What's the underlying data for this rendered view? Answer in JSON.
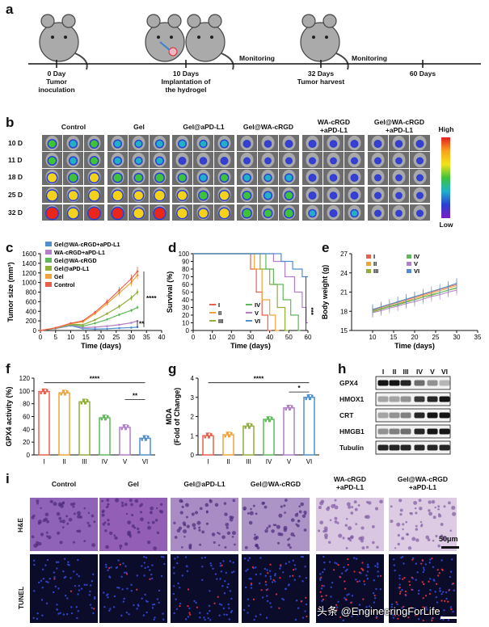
{
  "panels": {
    "a": "a",
    "b": "b",
    "c": "c",
    "d": "d",
    "e": "e",
    "f": "f",
    "g": "g",
    "h": "h",
    "i": "i"
  },
  "timeline": {
    "events": [
      {
        "day": "0 Day",
        "desc": [
          "Tumor",
          "inoculation"
        ]
      },
      {
        "day": "10 Days",
        "desc": [
          "Implantation of",
          "the hydrogel"
        ]
      },
      {
        "day": "32 Days",
        "desc": [
          "Tumor harvest"
        ]
      },
      {
        "day": "60 Days",
        "desc": []
      }
    ],
    "monitoring": [
      "Monitoring",
      "Monitoring"
    ]
  },
  "imaging": {
    "groups": [
      "Control",
      "Gel",
      "Gel@aPD-L1",
      "Gel@WA-cRGD",
      "WA-cRGD\n+aPD-L1",
      "Gel@WA-cRGD\n+aPD-L1"
    ],
    "days": [
      "10 D",
      "11 D",
      "18 D",
      "25 D",
      "32 D"
    ],
    "scale_high": "High",
    "scale_low": "Low"
  },
  "histology": {
    "groups": [
      "Control",
      "Gel",
      "Gel@aPD-L1",
      "Gel@WA-cRGD",
      "WA-cRGD\n+aPD-L1",
      "Gel@WA-cRGD\n+aPD-L1"
    ],
    "rows": [
      "H&E",
      "TUNEL"
    ],
    "scalebar": "50μm"
  },
  "western": {
    "lanes": [
      "I",
      "II",
      "III",
      "IV",
      "V",
      "VI"
    ],
    "proteins": [
      "GPX4",
      "HMOX1",
      "CRT",
      "HMGB1",
      "Tubulin"
    ]
  },
  "watermark": "头条 @EngineeringForLife",
  "colors": {
    "I": "#e8604c",
    "II": "#f0a33a",
    "III": "#8fae3a",
    "IV": "#5fb85a",
    "V": "#b27fc8",
    "VI": "#4f8fcf"
  },
  "chart_data": [
    {
      "id": "c",
      "type": "line",
      "xlabel": "Time (days)",
      "ylabel": "Tumor size (mm³)",
      "xlim": [
        0,
        40
      ],
      "ylim": [
        0,
        1600
      ],
      "xticks": [
        0,
        5,
        10,
        15,
        20,
        25,
        30,
        35,
        40
      ],
      "yticks": [
        0,
        200,
        400,
        600,
        800,
        1000,
        1200,
        1400,
        1600
      ],
      "x": [
        0,
        5,
        10,
        14,
        18,
        22,
        26,
        30,
        32
      ],
      "series": [
        {
          "name": "Gel@WA-cRGD+aPD-L1",
          "values": [
            0,
            40,
            100,
            40,
            30,
            35,
            50,
            60,
            70
          ]
        },
        {
          "name": "WA-cRGD+aPD-L1",
          "values": [
            0,
            45,
            110,
            60,
            70,
            90,
            120,
            160,
            200
          ]
        },
        {
          "name": "Gel@WA-cRGD",
          "values": [
            0,
            45,
            120,
            90,
            150,
            230,
            330,
            420,
            480
          ]
        },
        {
          "name": "Gel@aPD-L1",
          "values": [
            0,
            50,
            130,
            120,
            220,
            350,
            500,
            680,
            800
          ]
        },
        {
          "name": "Gel",
          "values": [
            0,
            50,
            140,
            180,
            350,
            560,
            780,
            1000,
            1150
          ]
        },
        {
          "name": "Control",
          "values": [
            0,
            55,
            150,
            200,
            380,
            600,
            840,
            1080,
            1230
          ]
        }
      ],
      "annotations": [
        "****",
        "**"
      ]
    },
    {
      "id": "d",
      "type": "line",
      "xlabel": "Time (days)",
      "ylabel": "Survival (%)",
      "xlim": [
        0,
        60
      ],
      "ylim": [
        0,
        100
      ],
      "xticks": [
        0,
        10,
        20,
        30,
        40,
        50,
        60
      ],
      "yticks": [
        0,
        10,
        20,
        30,
        40,
        50,
        60,
        70,
        80,
        90,
        100
      ],
      "series": [
        {
          "name": "I",
          "steps": [
            [
              0,
              100
            ],
            [
              30,
              100
            ],
            [
              30,
              80
            ],
            [
              33,
              80
            ],
            [
              33,
              50
            ],
            [
              36,
              50
            ],
            [
              36,
              20
            ],
            [
              39,
              20
            ],
            [
              39,
              0
            ],
            [
              41,
              0
            ]
          ]
        },
        {
          "name": "II",
          "steps": [
            [
              0,
              100
            ],
            [
              32,
              100
            ],
            [
              32,
              80
            ],
            [
              36,
              80
            ],
            [
              36,
              40
            ],
            [
              40,
              40
            ],
            [
              40,
              20
            ],
            [
              43,
              20
            ],
            [
              43,
              0
            ],
            [
              45,
              0
            ]
          ]
        },
        {
          "name": "III",
          "steps": [
            [
              0,
              100
            ],
            [
              35,
              100
            ],
            [
              35,
              80
            ],
            [
              40,
              80
            ],
            [
              40,
              60
            ],
            [
              44,
              60
            ],
            [
              44,
              30
            ],
            [
              48,
              30
            ],
            [
              48,
              0
            ],
            [
              50,
              0
            ]
          ]
        },
        {
          "name": "IV",
          "steps": [
            [
              0,
              100
            ],
            [
              38,
              100
            ],
            [
              38,
              80
            ],
            [
              42,
              80
            ],
            [
              42,
              60
            ],
            [
              47,
              60
            ],
            [
              47,
              40
            ],
            [
              51,
              40
            ],
            [
              51,
              20
            ],
            [
              55,
              20
            ],
            [
              55,
              0
            ],
            [
              56,
              0
            ]
          ]
        },
        {
          "name": "V",
          "steps": [
            [
              0,
              100
            ],
            [
              42,
              100
            ],
            [
              42,
              90
            ],
            [
              48,
              90
            ],
            [
              48,
              70
            ],
            [
              53,
              70
            ],
            [
              53,
              50
            ],
            [
              57,
              50
            ],
            [
              57,
              30
            ],
            [
              59,
              30
            ],
            [
              59,
              10
            ],
            [
              60,
              10
            ]
          ]
        },
        {
          "name": "VI",
          "steps": [
            [
              0,
              100
            ],
            [
              46,
              100
            ],
            [
              46,
              90
            ],
            [
              52,
              90
            ],
            [
              52,
              80
            ],
            [
              57,
              80
            ],
            [
              57,
              70
            ],
            [
              60,
              70
            ]
          ]
        }
      ],
      "annotations": [
        "***"
      ]
    },
    {
      "id": "e",
      "type": "line",
      "xlabel": "Time (days)",
      "ylabel": "Body weight (g)",
      "xlim": [
        5,
        35
      ],
      "ylim": [
        15,
        27
      ],
      "xticks": [
        10,
        15,
        20,
        25,
        30,
        35
      ],
      "yticks": [
        15,
        18,
        21,
        24,
        27
      ],
      "x": [
        10,
        12,
        14,
        16,
        18,
        20,
        22,
        24,
        26,
        28,
        30
      ],
      "series": [
        {
          "name": "I",
          "values": [
            18.2,
            18.6,
            19.0,
            19.4,
            19.8,
            20.2,
            20.6,
            21.0,
            21.4,
            21.8,
            22.2
          ]
        },
        {
          "name": "II",
          "values": [
            18.0,
            18.4,
            18.8,
            19.2,
            19.6,
            20.0,
            20.4,
            20.8,
            21.2,
            21.6,
            22.0
          ]
        },
        {
          "name": "III",
          "values": [
            17.9,
            18.3,
            18.7,
            19.0,
            19.4,
            19.8,
            20.2,
            20.5,
            20.9,
            21.3,
            21.6
          ]
        },
        {
          "name": "IV",
          "values": [
            18.1,
            18.4,
            18.8,
            19.1,
            19.5,
            19.8,
            20.2,
            20.6,
            20.9,
            21.3,
            21.7
          ]
        },
        {
          "name": "V",
          "values": [
            17.8,
            18.1,
            18.5,
            18.8,
            19.2,
            19.5,
            19.9,
            20.3,
            20.6,
            21.0,
            21.3
          ]
        },
        {
          "name": "VI",
          "values": [
            18.3,
            18.7,
            19.1,
            19.5,
            19.9,
            20.3,
            20.7,
            21.1,
            21.5,
            21.9,
            22.4
          ]
        }
      ]
    },
    {
      "id": "f",
      "type": "bar",
      "xlabel": "",
      "ylabel": "GPX4 activity (%)",
      "ylim": [
        0,
        120
      ],
      "yticks": [
        0,
        20,
        40,
        60,
        80,
        100,
        120
      ],
      "categories": [
        "I",
        "II",
        "III",
        "IV",
        "V",
        "VI"
      ],
      "values": [
        99,
        97,
        83,
        58,
        43,
        26
      ],
      "annotations": [
        "****",
        "**"
      ]
    },
    {
      "id": "g",
      "type": "bar",
      "xlabel": "",
      "ylabel": "MDA\n(Fold of Change)",
      "ylim": [
        0,
        4
      ],
      "yticks": [
        0,
        1,
        2,
        3,
        4
      ],
      "categories": [
        "I",
        "II",
        "III",
        "IV",
        "V",
        "VI"
      ],
      "values": [
        1.0,
        1.05,
        1.5,
        1.85,
        2.45,
        3.0
      ],
      "annotations": [
        "****",
        "*"
      ]
    }
  ]
}
